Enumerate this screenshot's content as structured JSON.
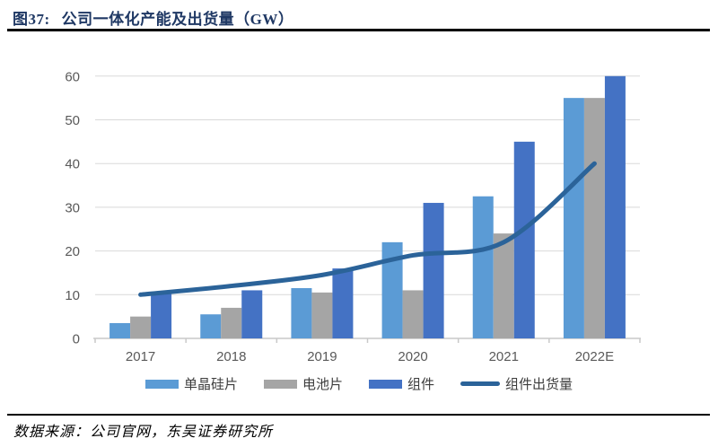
{
  "figure": {
    "label": "图37:",
    "title": "公司一体化产能及出货量（GW）"
  },
  "source": "数据来源：公司官网，东吴证券研究所",
  "colors": {
    "title_text": "#1F3864",
    "rule": "#000000",
    "axis_text": "#595959",
    "gridline": "#D9D9D9",
    "axis_line": "#C9C9C9",
    "legend_text": "#3D3D3D"
  },
  "chart_data": {
    "type": "bar",
    "title": "公司一体化产能及出货量（GW）",
    "categories": [
      "2017",
      "2018",
      "2019",
      "2020",
      "2021",
      "2022E"
    ],
    "series": [
      {
        "name": "单晶硅片",
        "type": "bar",
        "color": "#5B9BD5",
        "values": [
          3.5,
          5.5,
          11.5,
          22,
          32.5,
          55
        ]
      },
      {
        "name": "电池片",
        "type": "bar",
        "color": "#A5A5A5",
        "values": [
          5,
          7,
          10.5,
          11,
          24,
          55
        ]
      },
      {
        "name": "组件",
        "type": "bar",
        "color": "#4472C4",
        "values": [
          10.5,
          11,
          16,
          31,
          45,
          60
        ]
      },
      {
        "name": "组件出货量",
        "type": "line",
        "color": "#2B6399",
        "values": [
          10,
          12,
          14.5,
          19,
          22,
          40
        ],
        "smooth": true
      }
    ],
    "ylim": [
      0,
      60
    ],
    "yticks": [
      0,
      10,
      20,
      30,
      40,
      50,
      60
    ],
    "grid": true,
    "legend_position": "bottom"
  }
}
